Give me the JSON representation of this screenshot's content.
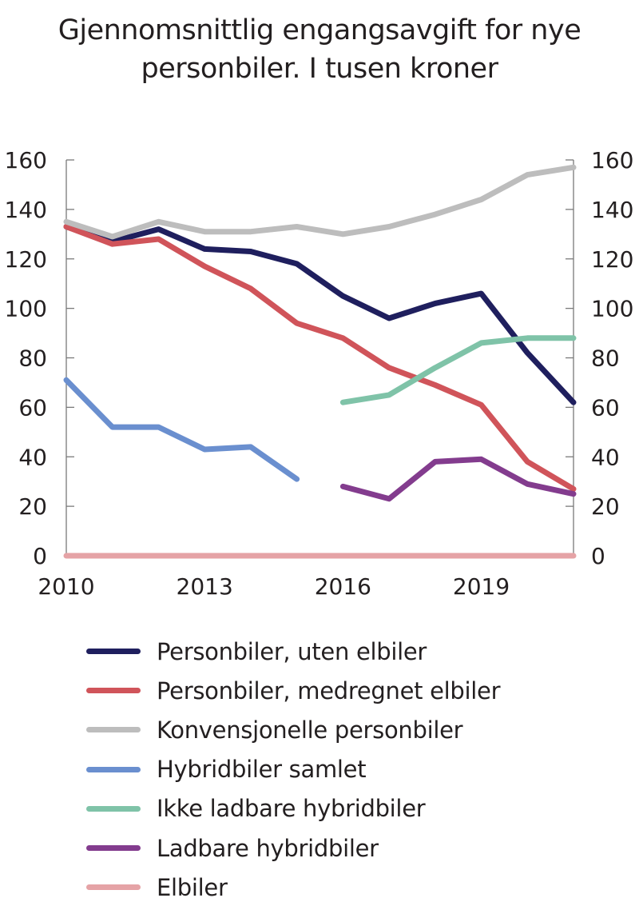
{
  "chart_data": {
    "type": "line",
    "title": "Gjennomsnittlig engangsavgift for nye personbiler. I tusen kroner",
    "title_lines": [
      "Gjennomsnittlig engangsavgift for nye",
      "personbiler. I tusen kroner"
    ],
    "xlabel": "",
    "ylabel": "",
    "x": [
      2010,
      2011,
      2012,
      2013,
      2014,
      2015,
      2016,
      2017,
      2018,
      2019,
      2020,
      2021
    ],
    "x_ticks": [
      2010,
      2013,
      2016,
      2019
    ],
    "x_tick_labels": [
      "2010",
      "2013",
      "2016",
      "2019"
    ],
    "xlim": [
      2010,
      2021
    ],
    "ylim": [
      0,
      160
    ],
    "y_ticks": [
      0,
      20,
      40,
      60,
      80,
      100,
      120,
      140,
      160
    ],
    "y_tick_labels": [
      "0",
      "20",
      "40",
      "60",
      "80",
      "100",
      "120",
      "140",
      "160"
    ],
    "dual_y_axis": true,
    "grid": false,
    "legend_position": "bottom",
    "series": [
      {
        "name": "Personbiler, uten elbiler",
        "color": "#1f1f5e",
        "values": [
          133,
          127,
          132,
          124,
          123,
          118,
          105,
          96,
          102,
          106,
          82,
          62
        ]
      },
      {
        "name": "Personbiler, medregnet elbiler",
        "color": "#d0545a",
        "values": [
          133,
          126,
          128,
          117,
          108,
          94,
          88,
          76,
          69,
          61,
          38,
          27
        ]
      },
      {
        "name": "Konvensjonelle personbiler",
        "color": "#bdbdbd",
        "values": [
          135,
          129,
          135,
          131,
          131,
          133,
          130,
          133,
          138,
          144,
          154,
          157
        ]
      },
      {
        "name": "Hybridbiler samlet",
        "color": "#6a8fcf",
        "values": [
          71,
          52,
          52,
          43,
          44,
          31,
          null,
          null,
          null,
          null,
          null,
          null
        ]
      },
      {
        "name": "Ikke ladbare hybridbiler",
        "color": "#7fc3a8",
        "values": [
          null,
          null,
          null,
          null,
          null,
          null,
          62,
          65,
          76,
          86,
          88,
          88
        ]
      },
      {
        "name": "Ladbare hybridbiler",
        "color": "#833c8e",
        "values": [
          null,
          null,
          null,
          null,
          null,
          null,
          28,
          23,
          38,
          39,
          29,
          25
        ]
      },
      {
        "name": "Elbiler",
        "color": "#e5a3a6",
        "values": [
          0,
          0,
          0,
          0,
          0,
          0,
          0,
          0,
          0,
          0,
          0,
          0
        ]
      }
    ]
  }
}
